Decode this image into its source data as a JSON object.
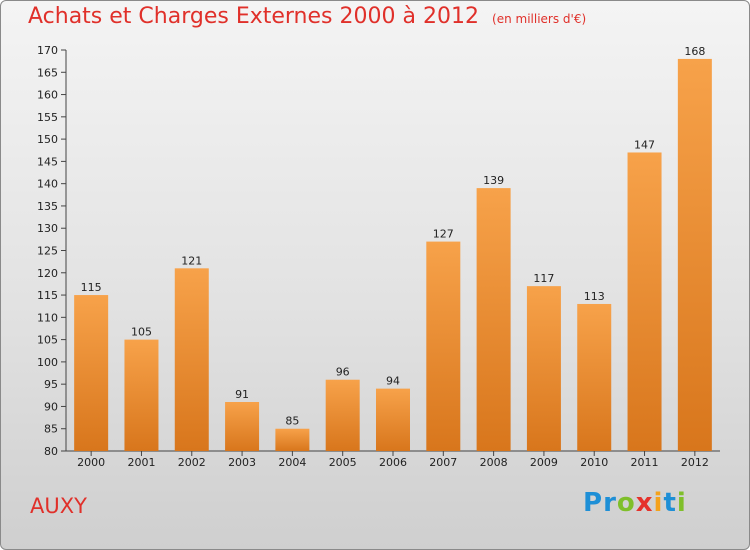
{
  "header": {
    "title": "Achats et Charges Externes 2000 à 2012",
    "unit": "(en milliers d'€)"
  },
  "footer": {
    "place": "AUXY"
  },
  "logo": {
    "letters": [
      {
        "ch": "P",
        "color": "#1e8fd6"
      },
      {
        "ch": "r",
        "color": "#1e8fd6"
      },
      {
        "ch": "o",
        "color": "#7fbf2a"
      },
      {
        "ch": "x",
        "color": "#e5322b"
      },
      {
        "ch": "i",
        "color": "#f4a21c"
      },
      {
        "ch": "t",
        "color": "#1e8fd6"
      },
      {
        "ch": "i",
        "color": "#7fbf2a"
      }
    ]
  },
  "chart_data": {
    "type": "bar",
    "title": "Achats et Charges Externes 2000 à 2012",
    "subtitle": "(en milliers d'€)",
    "categories": [
      "2000",
      "2001",
      "2002",
      "2003",
      "2004",
      "2005",
      "2006",
      "2007",
      "2008",
      "2009",
      "2010",
      "2011",
      "2012"
    ],
    "values": [
      115,
      105,
      121,
      91,
      85,
      96,
      94,
      127,
      139,
      117,
      113,
      147,
      168
    ],
    "ylim": [
      80,
      170
    ],
    "ytick_step": 5,
    "grid": false,
    "bar_color_top": "#f7a24a",
    "bar_color_bottom": "#d8761c"
  }
}
